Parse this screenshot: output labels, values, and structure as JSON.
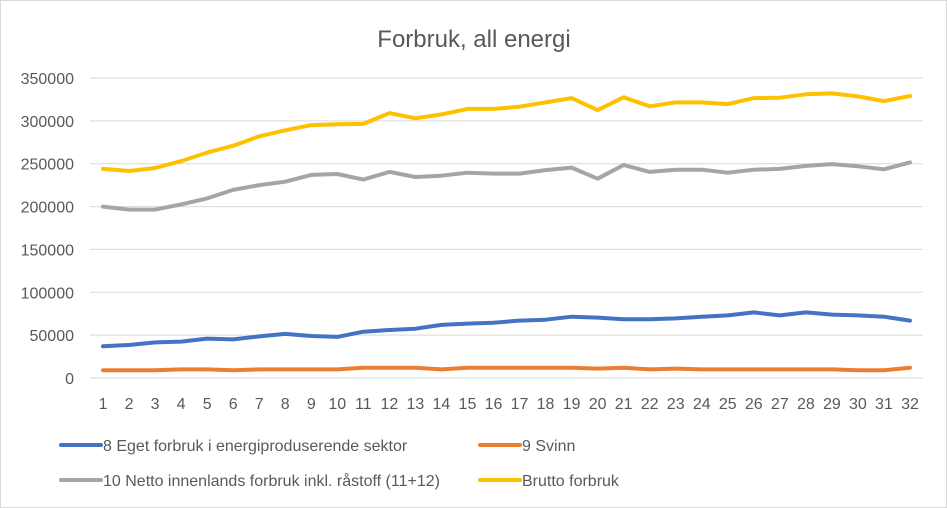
{
  "chart_data": {
    "type": "line",
    "title": "Forbruk, all energi",
    "xlabel": "",
    "ylabel": "",
    "ylim": [
      0,
      350000
    ],
    "yticks": [
      0,
      50000,
      100000,
      150000,
      200000,
      250000,
      300000,
      350000
    ],
    "grid": true,
    "legend": "bottom",
    "categories": [
      1,
      2,
      3,
      4,
      5,
      6,
      7,
      8,
      9,
      10,
      11,
      12,
      13,
      14,
      15,
      16,
      17,
      18,
      19,
      20,
      21,
      22,
      23,
      24,
      25,
      26,
      27,
      28,
      29,
      30,
      31,
      32
    ],
    "series": [
      {
        "name": "8 Eget forbruk i energiproduserende sektor",
        "color": "#4472c4",
        "values": [
          37000,
          38500,
          41500,
          42500,
          46000,
          45000,
          48500,
          51500,
          49000,
          48000,
          54000,
          56000,
          57500,
          62000,
          63500,
          64500,
          67000,
          68000,
          71500,
          70500,
          68500,
          68500,
          69500,
          71500,
          73000,
          76500,
          73000,
          76500,
          74000,
          73000,
          71500,
          67000
        ]
      },
      {
        "name": "9 Svinn",
        "color": "#ed7d31",
        "values": [
          9000,
          9000,
          9000,
          10000,
          10000,
          9000,
          10000,
          10000,
          10000,
          10000,
          12000,
          12000,
          12000,
          10000,
          12000,
          12000,
          12000,
          12000,
          12000,
          11000,
          12000,
          10000,
          11000,
          10000,
          10000,
          10000,
          10000,
          10000,
          10000,
          9000,
          9000,
          12000
        ]
      },
      {
        "name": "10 Netto innenlands forbruk inkl. råstoff (11+12)",
        "color": "#a5a5a5",
        "values": [
          200000,
          196500,
          196500,
          202500,
          209500,
          219500,
          225000,
          229000,
          237000,
          238000,
          231500,
          240500,
          234500,
          236000,
          239500,
          238500,
          238500,
          242500,
          245500,
          232500,
          248500,
          240500,
          243000,
          243000,
          239500,
          243000,
          244000,
          247500,
          249500,
          247000,
          243500,
          251500
        ]
      },
      {
        "name": "Brutto forbruk",
        "color": "#ffc000",
        "values": [
          244000,
          241500,
          245000,
          253000,
          263000,
          271000,
          282000,
          289000,
          295000,
          296000,
          296500,
          309000,
          303000,
          307500,
          314000,
          314000,
          316500,
          321500,
          326500,
          312500,
          327500,
          317000,
          321500,
          321500,
          319500,
          326500,
          327000,
          331000,
          332000,
          328500,
          323000,
          329000
        ]
      }
    ]
  }
}
